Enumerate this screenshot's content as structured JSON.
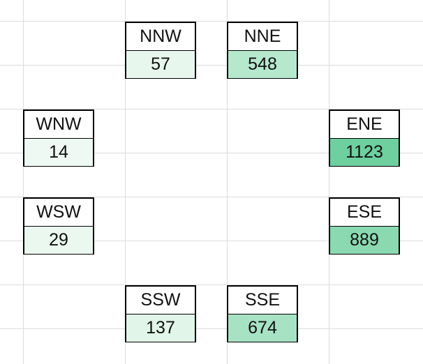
{
  "directions": {
    "nnw": {
      "label": "NNW",
      "value": "57",
      "fill": "#e8f7ee"
    },
    "nne": {
      "label": "NNE",
      "value": "548",
      "fill": "#b6e8cd"
    },
    "wnw": {
      "label": "WNW",
      "value": "14",
      "fill": "#edf9f2"
    },
    "ene": {
      "label": "ENE",
      "value": "1123",
      "fill": "#6ecf9f"
    },
    "wsw": {
      "label": "WSW",
      "value": "29",
      "fill": "#ebf8f0"
    },
    "ese": {
      "label": "ESE",
      "value": "889",
      "fill": "#8ad9b1"
    },
    "ssw": {
      "label": "SSW",
      "value": "137",
      "fill": "#e1f5e9"
    },
    "sse": {
      "label": "SSE",
      "value": "674",
      "fill": "#a7e2c4"
    }
  },
  "colors": {
    "grid_line": "#dadce0",
    "border": "#000000"
  }
}
